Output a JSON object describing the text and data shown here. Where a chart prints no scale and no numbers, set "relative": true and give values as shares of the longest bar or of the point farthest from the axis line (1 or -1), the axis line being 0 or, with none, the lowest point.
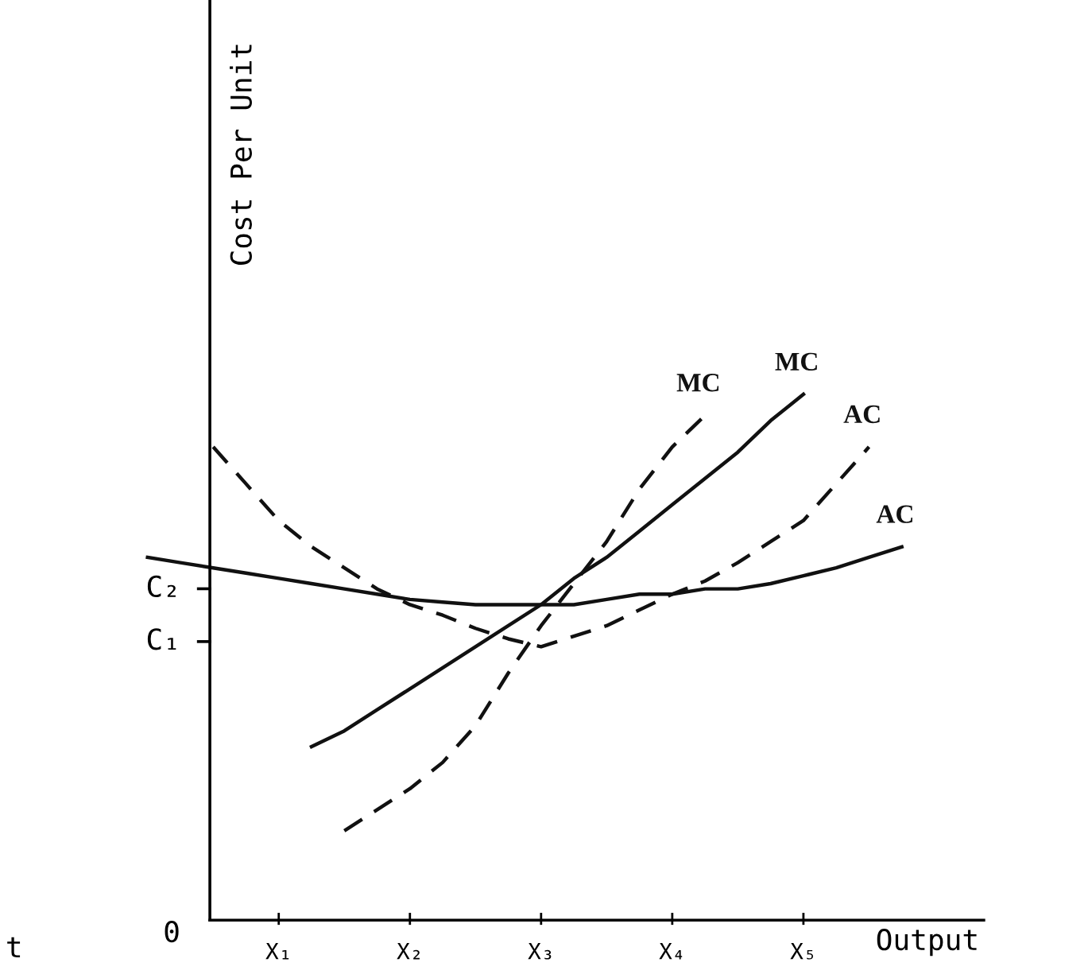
{
  "chart_data": {
    "type": "line",
    "relative": true,
    "ylabel": "Cost Per Unit",
    "xlabel": "Output",
    "categories": [
      null,
      null,
      null,
      null,
      "X₁",
      null,
      null,
      null,
      "X₂",
      null,
      null,
      null,
      "X₃",
      null,
      null,
      null,
      "X₄",
      null,
      null,
      null,
      "X₅",
      null,
      null,
      null,
      null
    ],
    "grid": false,
    "marker": "none",
    "annotations": [
      "t",
      "0",
      "C₁",
      "C₂"
    ],
    "series": [
      {
        "name": "AC",
        "color": "#111111",
        "line_style": "solid",
        "values": [
          0.69,
          0.68,
          0.67,
          0.66,
          0.65,
          0.64,
          0.63,
          0.62,
          0.61,
          0.605,
          0.6,
          0.6,
          0.6,
          0.6,
          0.61,
          0.62,
          0.62,
          0.63,
          0.63,
          0.64,
          0.655,
          0.67,
          0.69,
          0.71,
          null
        ]
      },
      {
        "name": "AC",
        "color": "#111111",
        "line_style": "dashed",
        "values": [
          null,
          null,
          0.9,
          0.83,
          0.76,
          0.71,
          0.67,
          0.63,
          0.6,
          0.58,
          0.555,
          0.535,
          0.52,
          0.54,
          0.56,
          0.59,
          0.62,
          0.645,
          0.68,
          0.72,
          0.76,
          0.83,
          0.9,
          null,
          null
        ]
      },
      {
        "name": "MC",
        "color": "#111111",
        "line_style": "solid",
        "values": [
          null,
          null,
          null,
          null,
          null,
          0.33,
          0.36,
          0.4,
          0.44,
          0.48,
          0.52,
          0.56,
          0.6,
          0.65,
          0.69,
          0.74,
          0.79,
          0.84,
          0.89,
          0.95,
          1.0,
          null,
          null,
          null,
          null
        ]
      },
      {
        "name": "MC",
        "color": "#111111",
        "line_style": "dashed",
        "values": [
          null,
          null,
          null,
          null,
          null,
          null,
          0.17,
          0.21,
          0.25,
          0.3,
          0.37,
          0.47,
          0.56,
          0.64,
          0.72,
          0.82,
          0.9,
          0.96,
          null,
          null,
          null,
          null,
          null,
          null,
          null
        ]
      }
    ]
  }
}
